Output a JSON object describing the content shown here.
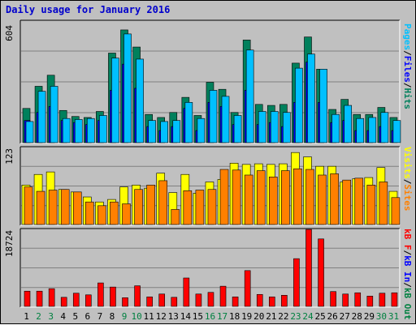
{
  "title": "Daily usage for January 2016",
  "colors": {
    "hits": "#00805c",
    "files": "#0000ff",
    "pages": "#00c0ff",
    "visits": "#ffff00",
    "sites": "#ff8000",
    "kbin": "#0000ff",
    "kbout": "#008040",
    "kbf": "#ff0000",
    "weekday_label": "#000000",
    "weekend_label": "#008040",
    "panel_bg": "#c0c0c0",
    "gridline": "#808080"
  },
  "right_labels": {
    "top": [
      {
        "text": "Pages",
        "color": "#00c0ff"
      },
      {
        "text": "/",
        "color": "#000000"
      },
      {
        "text": "Files",
        "color": "#0000ff"
      },
      {
        "text": "/",
        "color": "#000000"
      },
      {
        "text": "Hits",
        "color": "#00805c"
      }
    ],
    "middle": [
      {
        "text": "Visits",
        "color": "#ffff00"
      },
      {
        "text": "/",
        "color": "#000000"
      },
      {
        "text": "Sites",
        "color": "#ff8000"
      }
    ],
    "bottom": [
      {
        "text": "kB F",
        "color": "#ff0000"
      },
      {
        "text": "/",
        "color": "#000000"
      },
      {
        "text": "kB In",
        "color": "#0000ff"
      },
      {
        "text": "/",
        "color": "#000000"
      },
      {
        "text": "kB Out",
        "color": "#008040"
      }
    ]
  },
  "chart_data": [
    {
      "type": "bar",
      "panel": "hits_files_pages",
      "ymax_label": "604",
      "ylim": [
        0,
        604
      ],
      "categories": [
        "1",
        "2",
        "3",
        "4",
        "5",
        "6",
        "7",
        "8",
        "9",
        "10",
        "11",
        "12",
        "13",
        "14",
        "15",
        "16",
        "17",
        "18",
        "19",
        "20",
        "21",
        "22",
        "23",
        "24",
        "25",
        "26",
        "27",
        "28",
        "29",
        "30",
        "31"
      ],
      "weekend_days": [
        2,
        3,
        9,
        10,
        16,
        17,
        23,
        24,
        30,
        31
      ],
      "series": [
        {
          "name": "Hits",
          "color": "#00805c",
          "values": [
            170,
            280,
            335,
            160,
            130,
            125,
            155,
            445,
            560,
            475,
            140,
            125,
            150,
            225,
            135,
            300,
            265,
            150,
            510,
            190,
            185,
            190,
            395,
            525,
            365,
            165,
            215,
            140,
            140,
            175,
            125
          ]
        },
        {
          "name": "Files",
          "color": "#0000ff",
          "values": [
            110,
            150,
            180,
            110,
            100,
            90,
            110,
            260,
            390,
            270,
            80,
            60,
            80,
            170,
            60,
            200,
            180,
            90,
            260,
            90,
            100,
            80,
            200,
            400,
            200,
            100,
            110,
            60,
            60,
            80,
            60
          ]
        },
        {
          "name": "Pages",
          "color": "#00c0ff",
          "values": [
            105,
            255,
            280,
            120,
            115,
            120,
            135,
            420,
            540,
            415,
            110,
            105,
            110,
            200,
            120,
            260,
            230,
            135,
            460,
            155,
            155,
            150,
            370,
            440,
            365,
            140,
            185,
            120,
            125,
            150,
            110
          ]
        }
      ]
    },
    {
      "type": "bar",
      "panel": "visits_sites",
      "ymax_label": "123",
      "ylim": [
        0,
        123
      ],
      "categories": [
        "1",
        "2",
        "3",
        "4",
        "5",
        "6",
        "7",
        "8",
        "9",
        "10",
        "11",
        "12",
        "13",
        "14",
        "15",
        "16",
        "17",
        "18",
        "19",
        "20",
        "21",
        "22",
        "23",
        "24",
        "25",
        "26",
        "27",
        "28",
        "29",
        "30",
        "31"
      ],
      "weekend_days": [
        2,
        3,
        9,
        10,
        16,
        17,
        23,
        24,
        30,
        31
      ],
      "series": [
        {
          "name": "Visits",
          "color": "#ffff00",
          "values": [
            63,
            80,
            84,
            56,
            52,
            44,
            36,
            40,
            60,
            63,
            58,
            82,
            51,
            80,
            50,
            68,
            72,
            98,
            96,
            97,
            96,
            97,
            115,
            108,
            93,
            93,
            68,
            73,
            75,
            91,
            53
          ]
        },
        {
          "name": "Sites",
          "color": "#ff8000",
          "values": [
            60,
            53,
            55,
            56,
            52,
            36,
            30,
            36,
            33,
            56,
            63,
            70,
            24,
            54,
            55,
            56,
            88,
            87,
            79,
            86,
            76,
            86,
            89,
            88,
            79,
            81,
            71,
            74,
            63,
            68,
            43
          ]
        }
      ]
    },
    {
      "type": "bar",
      "panel": "kbytes",
      "ymax_label": "18724",
      "ylim": [
        0,
        18724
      ],
      "categories": [
        "1",
        "2",
        "3",
        "4",
        "5",
        "6",
        "7",
        "8",
        "9",
        "10",
        "11",
        "12",
        "13",
        "14",
        "15",
        "16",
        "17",
        "18",
        "19",
        "20",
        "21",
        "22",
        "23",
        "24",
        "25",
        "26",
        "27",
        "28",
        "29",
        "30",
        "31"
      ],
      "weekend_days": [
        2,
        3,
        9,
        10,
        16,
        17,
        23,
        24,
        30,
        31
      ],
      "series": [
        {
          "name": "kB F",
          "color": "#ff0000",
          "values": [
            3700,
            3700,
            4300,
            2200,
            3200,
            2800,
            5700,
            4700,
            2100,
            5000,
            2300,
            3000,
            2200,
            6900,
            3000,
            3400,
            4900,
            2300,
            8700,
            2900,
            2300,
            2700,
            11600,
            18700,
            16400,
            3600,
            3000,
            3300,
            2500,
            3200,
            3300
          ]
        }
      ]
    }
  ]
}
